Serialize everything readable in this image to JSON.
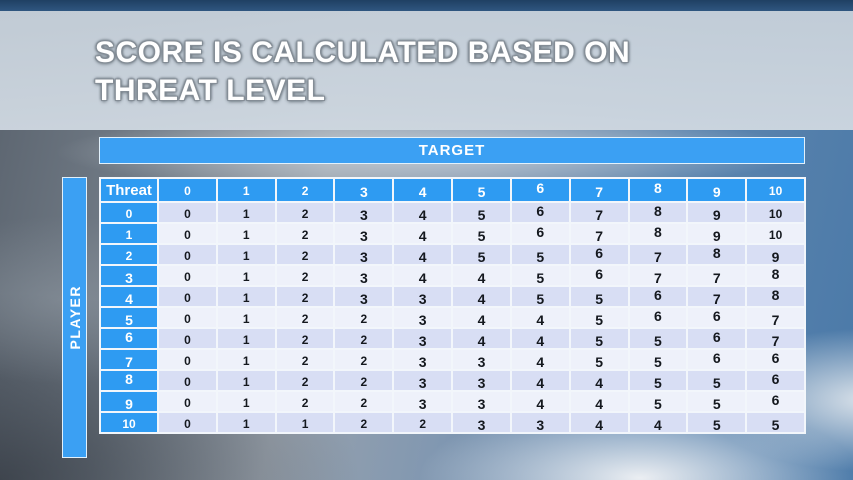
{
  "title": {
    "line1": "SCORE IS CALCULATED BASED ON",
    "line2": "THREAT LEVEL"
  },
  "table": {
    "target_label": "TARGET",
    "player_label": "PLAYER",
    "corner_label": "Threat",
    "columns": [
      "0",
      "1",
      "2",
      "3",
      "4",
      "5",
      "6",
      "7",
      "8",
      "9",
      "10"
    ],
    "rows": [
      {
        "label": "0",
        "values": [
          0,
          1,
          2,
          3,
          4,
          5,
          6,
          7,
          8,
          9,
          10
        ]
      },
      {
        "label": "1",
        "values": [
          0,
          1,
          2,
          3,
          4,
          5,
          6,
          7,
          8,
          9,
          10
        ]
      },
      {
        "label": "2",
        "values": [
          0,
          1,
          2,
          3,
          4,
          5,
          5,
          6,
          7,
          8,
          9
        ]
      },
      {
        "label": "3",
        "values": [
          0,
          1,
          2,
          3,
          4,
          4,
          5,
          6,
          7,
          7,
          8
        ]
      },
      {
        "label": "4",
        "values": [
          0,
          1,
          2,
          3,
          3,
          4,
          5,
          5,
          6,
          7,
          8
        ]
      },
      {
        "label": "5",
        "values": [
          0,
          1,
          2,
          2,
          3,
          4,
          4,
          5,
          6,
          6,
          7
        ]
      },
      {
        "label": "6",
        "values": [
          0,
          1,
          2,
          2,
          3,
          4,
          4,
          5,
          5,
          6,
          7
        ]
      },
      {
        "label": "7",
        "values": [
          0,
          1,
          2,
          2,
          3,
          3,
          4,
          5,
          5,
          6,
          6
        ]
      },
      {
        "label": "8",
        "values": [
          0,
          1,
          2,
          2,
          3,
          3,
          4,
          4,
          5,
          5,
          6
        ]
      },
      {
        "label": "9",
        "values": [
          0,
          1,
          2,
          2,
          3,
          3,
          4,
          4,
          5,
          5,
          6
        ]
      },
      {
        "label": "10",
        "values": [
          0,
          1,
          1,
          2,
          2,
          3,
          3,
          4,
          4,
          5,
          5
        ]
      }
    ]
  },
  "colors": {
    "header_blue": "#2e9bf2",
    "bar_blue": "#3ba0f3",
    "band_dark": "#d8def4",
    "band_light": "#eef1fa",
    "cell_border": "#f2f6fb",
    "banner_grey": "#c9d3dd",
    "top_sky": "#2f5680"
  },
  "chart_data": {
    "type": "table",
    "title": "SCORE IS CALCULATED BASED ON THREAT LEVEL",
    "column_axis_label": "TARGET",
    "row_axis_label": "PLAYER",
    "corner_label": "Threat",
    "columns": [
      0,
      1,
      2,
      3,
      4,
      5,
      6,
      7,
      8,
      9,
      10
    ],
    "rows": [
      0,
      1,
      2,
      3,
      4,
      5,
      6,
      7,
      8,
      9,
      10
    ],
    "values": [
      [
        0,
        1,
        2,
        3,
        4,
        5,
        6,
        7,
        8,
        9,
        10
      ],
      [
        0,
        1,
        2,
        3,
        4,
        5,
        6,
        7,
        8,
        9,
        10
      ],
      [
        0,
        1,
        2,
        3,
        4,
        5,
        5,
        6,
        7,
        8,
        9
      ],
      [
        0,
        1,
        2,
        3,
        4,
        4,
        5,
        6,
        7,
        7,
        8
      ],
      [
        0,
        1,
        2,
        3,
        3,
        4,
        5,
        5,
        6,
        7,
        8
      ],
      [
        0,
        1,
        2,
        2,
        3,
        4,
        4,
        5,
        6,
        6,
        7
      ],
      [
        0,
        1,
        2,
        2,
        3,
        4,
        4,
        5,
        5,
        6,
        7
      ],
      [
        0,
        1,
        2,
        2,
        3,
        3,
        4,
        5,
        5,
        6,
        6
      ],
      [
        0,
        1,
        2,
        2,
        3,
        3,
        4,
        4,
        5,
        5,
        6
      ],
      [
        0,
        1,
        2,
        2,
        3,
        3,
        4,
        4,
        5,
        5,
        6
      ],
      [
        0,
        1,
        1,
        2,
        2,
        3,
        3,
        4,
        4,
        5,
        5
      ]
    ]
  }
}
